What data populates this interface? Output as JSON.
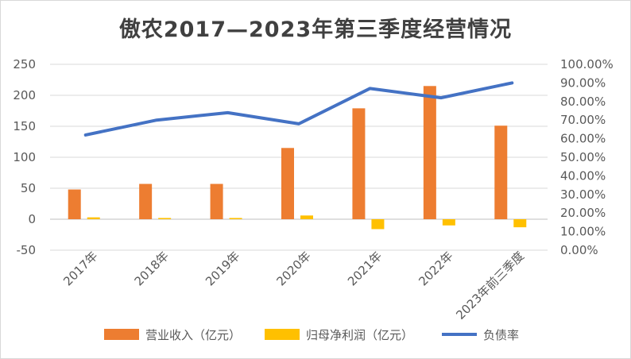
{
  "chart_data": {
    "type": "bar",
    "title": "傲农2017—2023年第三季度经营情况",
    "categories": [
      "2017年",
      "2018年",
      "2019年",
      "2020年",
      "2021年",
      "2022年",
      "2023年前三季度"
    ],
    "series": [
      {
        "name": "营业收入（亿元）",
        "type": "bar",
        "axis": "left",
        "color": "#ED7D31",
        "values": [
          48,
          57,
          57,
          115,
          179,
          215,
          151
        ]
      },
      {
        "name": "归母净利润（亿元）",
        "type": "bar",
        "axis": "left",
        "color": "#FFC000",
        "values": [
          3,
          2,
          2,
          6,
          -16,
          -10,
          -13
        ]
      },
      {
        "name": "负债率",
        "type": "line",
        "axis": "right",
        "color": "#4472C4",
        "values": [
          0.62,
          0.7,
          0.74,
          0.68,
          0.87,
          0.82,
          0.9
        ]
      }
    ],
    "y_left": {
      "min": -50,
      "max": 250,
      "step": 50,
      "ticks": [
        "-50",
        "0",
        "50",
        "100",
        "150",
        "200",
        "250"
      ]
    },
    "y_right": {
      "min": 0,
      "max": 1,
      "step": 0.1,
      "ticks": [
        "0.00%",
        "10.00%",
        "20.00%",
        "30.00%",
        "40.00%",
        "50.00%",
        "60.00%",
        "70.00%",
        "80.00%",
        "90.00%",
        "100.00%"
      ]
    },
    "grid": true,
    "legend_position": "bottom"
  }
}
